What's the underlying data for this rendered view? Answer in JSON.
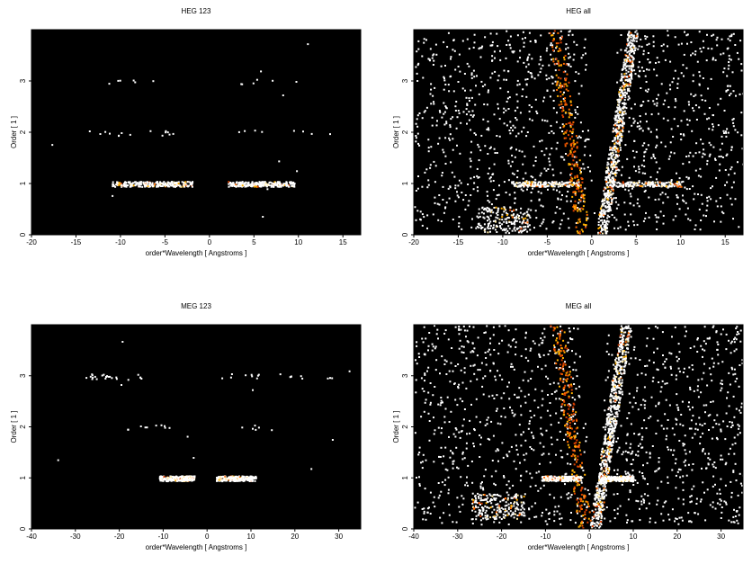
{
  "chart_data": [
    {
      "id": "heg123",
      "type": "heatmap",
      "title": "HEG 123",
      "xlabel": "order*Wavelength [ Angstroms ]",
      "ylabel": "Order [ 1 ]",
      "xlim": [
        -20,
        17
      ],
      "ylim": [
        0,
        4
      ],
      "xticks": [
        -20,
        -15,
        -10,
        -5,
        0,
        5,
        10,
        15
      ],
      "yticks": [
        0,
        1,
        2,
        3
      ],
      "background": "#000000",
      "colors": [
        "#ffffff",
        "#ffe9a0",
        "#ffb000",
        "#ff6a00",
        "#d94000"
      ],
      "bands": [
        {
          "order": 1,
          "x": [
            -11,
            -2
          ],
          "density": 260
        },
        {
          "order": 1,
          "x": [
            2,
            9.5
          ],
          "density": 220
        },
        {
          "order": 2,
          "x": [
            -14,
            -4
          ],
          "density": 14
        },
        {
          "order": 2,
          "x": [
            2,
            15
          ],
          "density": 8
        },
        {
          "order": 3,
          "x": [
            -12,
            -4
          ],
          "density": 6
        },
        {
          "order": 3,
          "x": [
            3,
            10
          ],
          "density": 6
        }
      ],
      "scatter_density": 10,
      "wedge": false
    },
    {
      "id": "hegall",
      "type": "heatmap",
      "title": "HEG all",
      "xlabel": "order*Wavelength [ Angstroms ]",
      "ylabel": "Order [ 1 ]",
      "xlim": [
        -20,
        17
      ],
      "ylim": [
        0,
        4
      ],
      "xticks": [
        -20,
        -15,
        -10,
        -5,
        0,
        5,
        10,
        15
      ],
      "yticks": [
        0,
        1,
        2,
        3
      ],
      "background": "#000000",
      "colors": [
        "#ffffff",
        "#ffe9a0",
        "#ffb000",
        "#ff6a00",
        "#d94000"
      ],
      "bands": [
        {
          "order": 1,
          "x": [
            -9,
            -1.5
          ],
          "density": 200
        },
        {
          "order": 1,
          "x": [
            2,
            10
          ],
          "density": 170
        },
        {
          "order": 0.3,
          "x": [
            -13,
            -7
          ],
          "density": 170
        }
      ],
      "scatter_density": 1300,
      "wedge": true
    },
    {
      "id": "meg123",
      "type": "heatmap",
      "title": "MEG 123",
      "xlabel": "order*Wavelength [ Angstroms ]",
      "ylabel": "Order [ 1 ]",
      "xlim": [
        -40,
        35
      ],
      "ylim": [
        0,
        4
      ],
      "xticks": [
        -40,
        -30,
        -20,
        -10,
        0,
        10,
        20,
        30
      ],
      "yticks": [
        0,
        1,
        2,
        3
      ],
      "background": "#000000",
      "colors": [
        "#ffffff",
        "#ffe9a0",
        "#ffb000",
        "#ff6a00",
        "#d94000"
      ],
      "bands": [
        {
          "order": 1,
          "x": [
            -11,
            -3
          ],
          "density": 280
        },
        {
          "order": 1,
          "x": [
            2,
            11
          ],
          "density": 260
        },
        {
          "order": 2,
          "x": [
            -20,
            -8
          ],
          "density": 10
        },
        {
          "order": 2,
          "x": [
            5,
            15
          ],
          "density": 6
        },
        {
          "order": 3,
          "x": [
            -28,
            -15
          ],
          "density": 22
        },
        {
          "order": 3,
          "x": [
            2,
            30
          ],
          "density": 18
        }
      ],
      "scatter_density": 10,
      "wedge": false
    },
    {
      "id": "megall",
      "type": "heatmap",
      "title": "MEG all",
      "xlabel": "order*Wavelength [ Angstroms ]",
      "ylabel": "Order [ 1 ]",
      "xlim": [
        -40,
        35
      ],
      "ylim": [
        0,
        4
      ],
      "xticks": [
        -40,
        -30,
        -20,
        -10,
        0,
        10,
        20,
        30
      ],
      "yticks": [
        0,
        1,
        2,
        3
      ],
      "background": "#000000",
      "colors": [
        "#ffffff",
        "#ffe9a0",
        "#ffb000",
        "#ff6a00",
        "#d94000"
      ],
      "bands": [
        {
          "order": 1,
          "x": [
            -11,
            -2
          ],
          "density": 240
        },
        {
          "order": 1,
          "x": [
            2,
            10
          ],
          "density": 230
        },
        {
          "order": 0.45,
          "x": [
            -27,
            -15
          ],
          "density": 200
        }
      ],
      "scatter_density": 1300,
      "wedge": true
    }
  ]
}
